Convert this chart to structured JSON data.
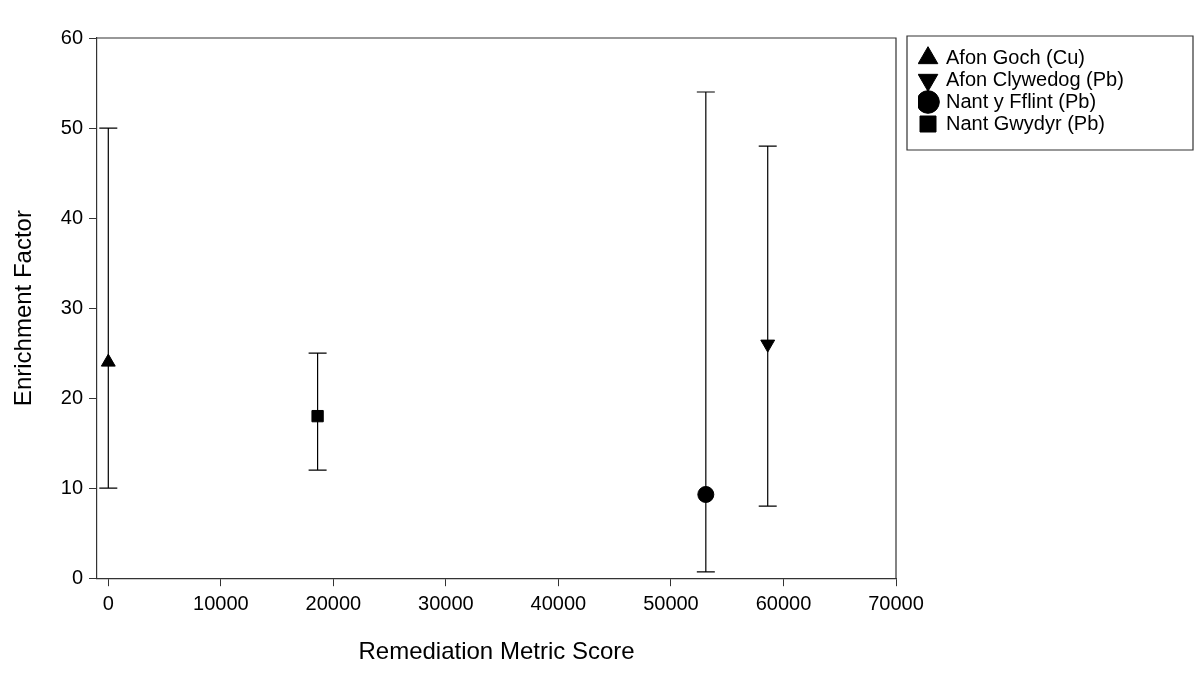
{
  "chart_data": {
    "type": "scatter",
    "xlabel": "Remediation Metric Score",
    "ylabel": "Enrichment Factor",
    "xlim": [
      -1000,
      70000
    ],
    "xticks": [
      0,
      10000,
      20000,
      30000,
      40000,
      50000,
      60000,
      70000
    ],
    "ylim": [
      0,
      60
    ],
    "yticks": [
      0,
      10,
      20,
      30,
      40,
      50,
      60
    ],
    "grid": false,
    "legend": "top right",
    "series": [
      {
        "name": "Afon Goch (Cu)",
        "color": "#000000",
        "marker": "triangle",
        "x": [
          0
        ],
        "values": [
          24
        ],
        "errors": [
          [
            10,
            50
          ]
        ]
      },
      {
        "name": "Afon Clywedog (Pb)",
        "color": "#000000",
        "marker": "triangle-down",
        "x": [
          58600
        ],
        "values": [
          26
        ],
        "errors": [
          [
            8,
            48
          ]
        ]
      },
      {
        "name": "Nant y Fflint (Pb)",
        "color": "#000000",
        "marker": "circle",
        "x": [
          53100
        ],
        "values": [
          9.3
        ],
        "errors": [
          [
            0.7,
            54
          ]
        ]
      },
      {
        "name": "Nant Gwydyr (Pb)",
        "color": "#000000",
        "marker": "square",
        "x": [
          18600
        ],
        "values": [
          18
        ],
        "errors": [
          [
            12,
            25
          ]
        ]
      }
    ]
  }
}
